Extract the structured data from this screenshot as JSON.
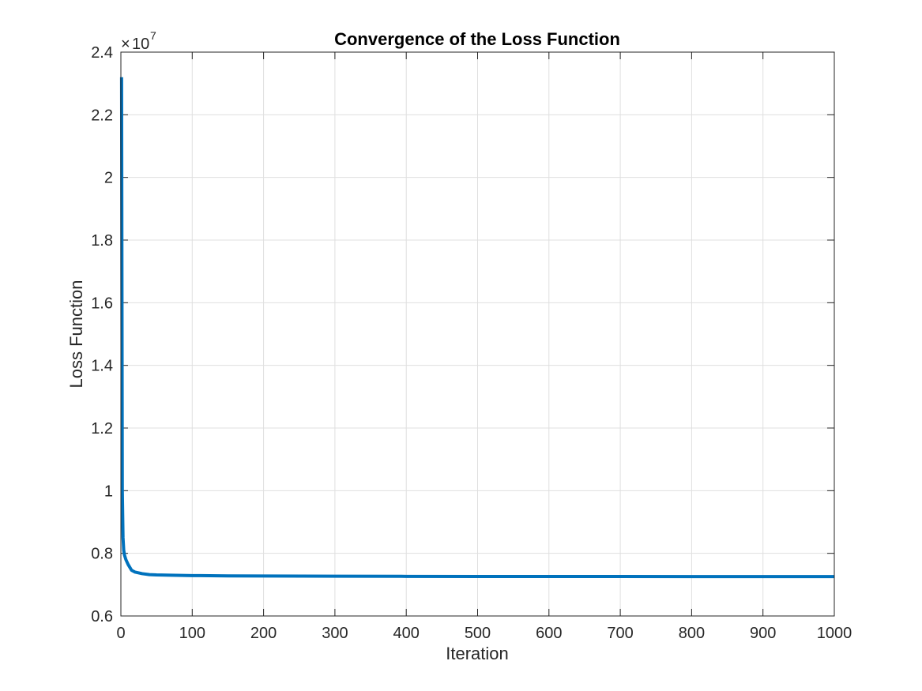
{
  "chart_data": {
    "type": "line",
    "title": "Convergence of the Loss Function",
    "xlabel": "Iteration",
    "ylabel": "Loss Function",
    "xlim": [
      0,
      1000
    ],
    "ylim": [
      6000000,
      24000000
    ],
    "y_exponent": {
      "times": "×",
      "base": "10",
      "power": "7"
    },
    "x_ticks": [
      0,
      100,
      200,
      300,
      400,
      500,
      600,
      700,
      800,
      900,
      1000
    ],
    "x_tick_labels": [
      "0",
      "100",
      "200",
      "300",
      "400",
      "500",
      "600",
      "700",
      "800",
      "900",
      "1000"
    ],
    "y_ticks": [
      6000000,
      8000000,
      10000000,
      12000000,
      14000000,
      16000000,
      18000000,
      20000000,
      22000000,
      24000000
    ],
    "y_tick_labels": [
      "0.6",
      "0.8",
      "1",
      "1.2",
      "1.4",
      "1.6",
      "1.8",
      "2",
      "2.2",
      "2.4"
    ],
    "grid": true,
    "line_color": "#0072BD",
    "series": [
      {
        "x": [
          1,
          2,
          3,
          4,
          5,
          7,
          10,
          15,
          20,
          30,
          40,
          50,
          70,
          100,
          150,
          200,
          300,
          400,
          500,
          600,
          700,
          800,
          900,
          1000
        ],
        "y": [
          23200000,
          10000000,
          8500000,
          8100000,
          7950000,
          7800000,
          7650000,
          7460000,
          7400000,
          7350000,
          7320000,
          7310000,
          7300000,
          7290000,
          7280000,
          7275000,
          7270000,
          7265000,
          7262000,
          7260000,
          7259000,
          7258000,
          7257000,
          7256000
        ]
      }
    ]
  }
}
